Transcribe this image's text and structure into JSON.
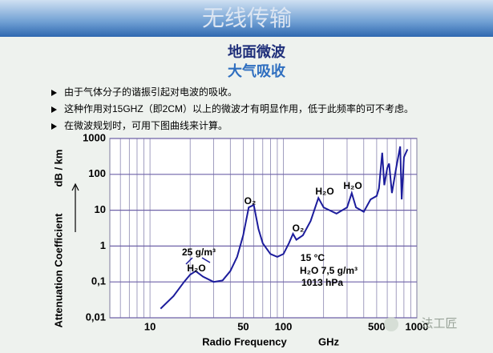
{
  "header": {
    "title": "无线传输",
    "heading": "地面微波",
    "subheading": "大气吸收"
  },
  "bullets": [
    "由于气体分子的谐振引起对电波的吸收。",
    "这种作用对15GHZ（即2CM）以上的微波才有明显作用，低于此频率的可不考虑。",
    "在微波规划时，可用下图曲线来计算。"
  ],
  "watermark": "法工匠",
  "chart_data": {
    "type": "line",
    "color": "#1c1c9c",
    "x_label": "Radio Frequency",
    "x_unit": "GHz",
    "y_label": "Attenuation Coefficient",
    "y_unit": "dB / km",
    "log_x": true,
    "log_y": true,
    "grid": true,
    "xlim": [
      5,
      1000
    ],
    "ylim": [
      0.01,
      1000
    ],
    "xticks": [
      10,
      50,
      100,
      500,
      1000
    ],
    "xgrid": [
      5,
      6,
      7,
      8,
      9,
      10,
      20,
      30,
      40,
      50,
      60,
      70,
      80,
      90,
      100,
      200,
      300,
      400,
      500,
      600,
      700,
      800,
      900,
      1000
    ],
    "yticks": [
      {
        "value": 0.01,
        "label": "0,01"
      },
      {
        "value": 0.1,
        "label": "0,1"
      },
      1,
      10,
      100,
      1000
    ],
    "x": [
      12,
      15,
      18,
      20,
      22,
      25,
      30,
      35,
      40,
      45,
      50,
      55,
      60,
      65,
      70,
      80,
      90,
      100,
      110,
      118,
      125,
      140,
      160,
      183,
      200,
      250,
      300,
      325,
      350,
      400,
      450,
      500,
      520,
      550,
      570,
      600,
      620,
      650,
      700,
      750,
      770,
      800,
      850
    ],
    "values": [
      0.018,
      0.04,
      0.1,
      0.16,
      0.2,
      0.14,
      0.1,
      0.11,
      0.2,
      0.5,
      2,
      12,
      14,
      3,
      1.2,
      0.6,
      0.5,
      0.6,
      1.2,
      2.2,
      1.5,
      2,
      5,
      22,
      12,
      8,
      12,
      30,
      12,
      9,
      20,
      25,
      40,
      400,
      50,
      150,
      200,
      30,
      150,
      600,
      20,
      300,
      500
    ],
    "annotations": [
      "25 g/m³",
      "H₂O",
      "O₂",
      "O₂",
      "H₂O",
      "H₂O",
      "15 °C",
      "H₂O 7,5 g/m³",
      "1013 hPa"
    ]
  }
}
